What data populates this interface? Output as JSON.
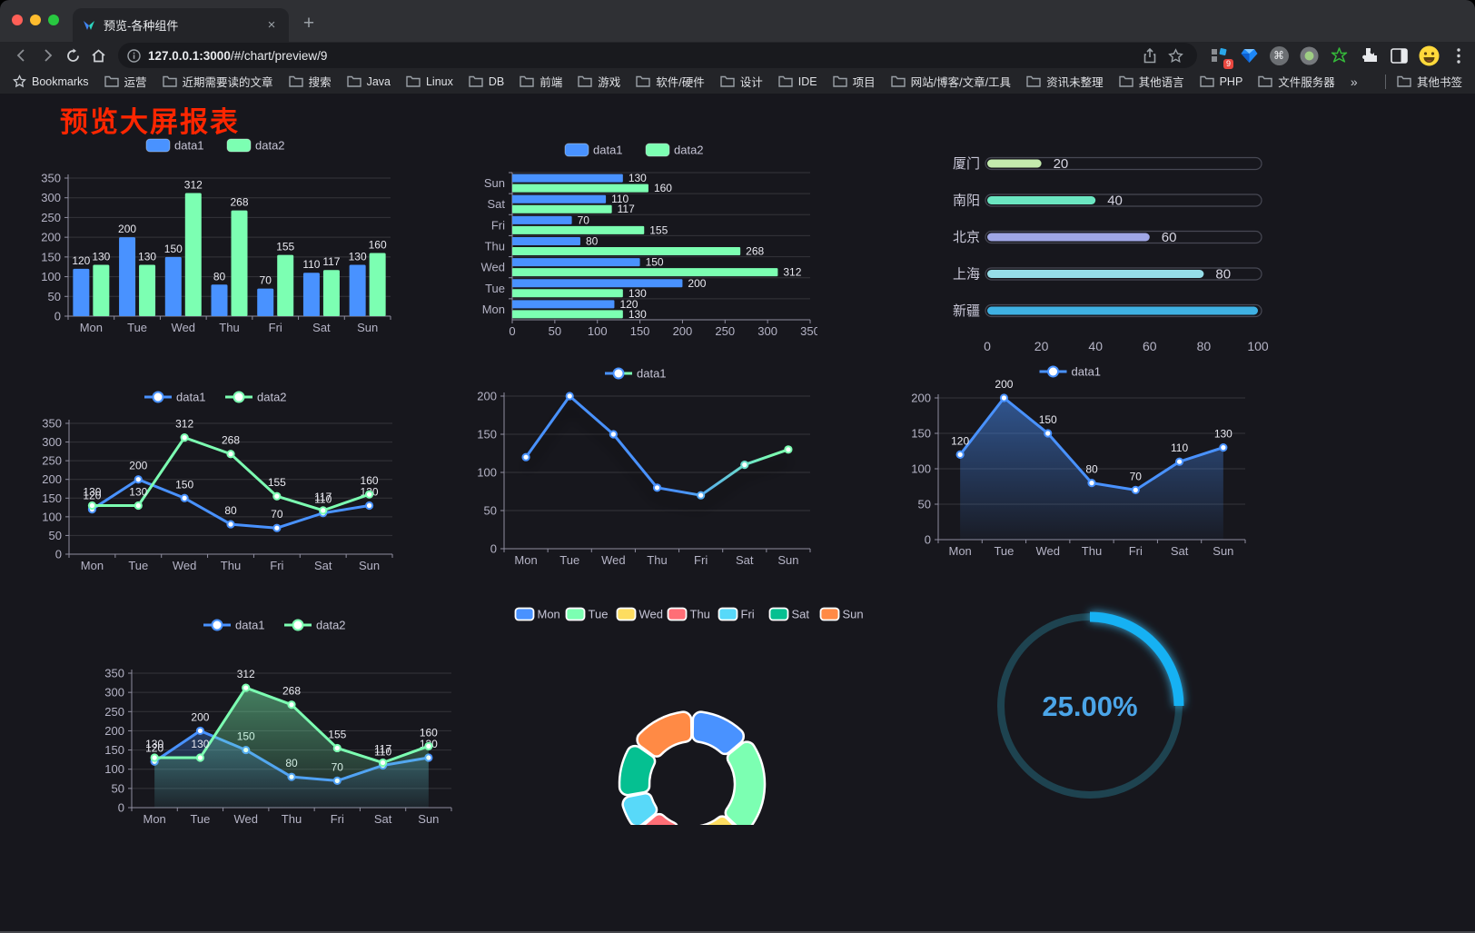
{
  "browser": {
    "traffic_lights": [
      "#ff5f57",
      "#febc2e",
      "#28c840"
    ],
    "tab": {
      "title": "预览-各种组件"
    },
    "close_icon": "×",
    "new_tab_icon": "+",
    "url": {
      "host": "127.0.0.1:3000",
      "path": "/#/chart/preview/9"
    },
    "extension_badge": "9",
    "bookmarks_bar": {
      "star_label": "Bookmarks",
      "folders": [
        "运营",
        "近期需要读的文章",
        "搜索",
        "Java",
        "Linux",
        "DB",
        "前端",
        "游戏",
        "软件/硬件",
        "设计",
        "IDE",
        "项目",
        "网站/博客/文章/工具",
        "资讯未整理",
        "其他语言",
        "PHP",
        "文件服务器"
      ],
      "overflow_icon": "»",
      "other_bookmarks": "其他书签"
    }
  },
  "page": {
    "title": "预览大屏报表"
  },
  "theme": {
    "background": "#17171d",
    "axis_line": "#8f8ea0",
    "tick_label": "#b5b4c6",
    "grid_line": "rgba(255,255,255,0.13)",
    "value_label": "#e9e9f0",
    "legend_text": "#c6c5d6",
    "data1_color": "#4992ff",
    "data2_color": "#7cffb2"
  },
  "chart_data": [
    {
      "type": "bar",
      "title": "",
      "categories": [
        "Mon",
        "Tue",
        "Wed",
        "Thu",
        "Fri",
        "Sat",
        "Sun"
      ],
      "series": [
        {
          "name": "data1",
          "color": "#4992ff",
          "values": [
            120,
            200,
            150,
            80,
            70,
            110,
            130
          ]
        },
        {
          "name": "data2",
          "color": "#7cffb2",
          "values": [
            130,
            130,
            312,
            268,
            155,
            117,
            160
          ]
        }
      ],
      "ylim": [
        0,
        350
      ],
      "yticks": [
        0,
        50,
        100,
        150,
        200,
        250,
        300,
        350
      ],
      "grid": true,
      "legend_position": "top",
      "value_labels": true
    },
    {
      "type": "bar",
      "orientation": "horizontal",
      "categories_top_to_bottom": [
        "Sun",
        "Sat",
        "Fri",
        "Thu",
        "Wed",
        "Tue",
        "Mon"
      ],
      "categories": [
        "Mon",
        "Tue",
        "Wed",
        "Thu",
        "Fri",
        "Sat",
        "Sun"
      ],
      "series": [
        {
          "name": "data1",
          "color": "#4992ff",
          "values": [
            120,
            200,
            150,
            80,
            70,
            110,
            130
          ]
        },
        {
          "name": "data2",
          "color": "#7cffb2",
          "values": [
            130,
            130,
            312,
            268,
            155,
            117,
            160
          ]
        }
      ],
      "xlim": [
        0,
        350
      ],
      "xticks": [
        0,
        50,
        100,
        150,
        200,
        250,
        300,
        350
      ],
      "grid": true,
      "legend_position": "top",
      "value_labels": true
    },
    {
      "type": "bar",
      "subtype": "progress-pills",
      "items": [
        {
          "label": "厦门",
          "value": 20,
          "color": "#c4ebad"
        },
        {
          "label": "南阳",
          "value": 40,
          "color": "#6be6c1"
        },
        {
          "label": "北京",
          "value": 60,
          "color": "#a0a7e6"
        },
        {
          "label": "上海",
          "value": 80,
          "color": "#96dee8"
        },
        {
          "label": "新疆",
          "value": 100,
          "color": "#3fb1e3"
        }
      ],
      "max": 100,
      "xticks": [
        0,
        20,
        40,
        60,
        80,
        100
      ],
      "value_labels": true
    },
    {
      "type": "line",
      "categories": [
        "Mon",
        "Tue",
        "Wed",
        "Thu",
        "Fri",
        "Sat",
        "Sun"
      ],
      "series": [
        {
          "name": "data1",
          "color": "#4992ff",
          "values": [
            120,
            200,
            150,
            80,
            70,
            110,
            130
          ]
        },
        {
          "name": "data2",
          "color": "#7cffb2",
          "values": [
            130,
            130,
            312,
            268,
            155,
            117,
            160
          ]
        }
      ],
      "ylim": [
        0,
        350
      ],
      "yticks": [
        0,
        50,
        100,
        150,
        200,
        250,
        300,
        350
      ],
      "grid": true,
      "legend_position": "top",
      "value_labels": true,
      "markers": true
    },
    {
      "type": "line",
      "categories": [
        "Mon",
        "Tue",
        "Wed",
        "Thu",
        "Fri",
        "Sat",
        "Sun"
      ],
      "series": [
        {
          "name": "data1",
          "colors": [
            "#4992ff",
            "#7cffb2"
          ],
          "values": [
            120,
            200,
            150,
            80,
            70,
            110,
            130
          ]
        }
      ],
      "ylim": [
        0,
        200
      ],
      "yticks": [
        0,
        50,
        100,
        150,
        200
      ],
      "grid": true,
      "legend_position": "top",
      "value_labels": false,
      "markers": true,
      "shadow": true
    },
    {
      "type": "area",
      "categories": [
        "Mon",
        "Tue",
        "Wed",
        "Thu",
        "Fri",
        "Sat",
        "Sun"
      ],
      "series": [
        {
          "name": "data1",
          "color": "#4992ff",
          "values": [
            120,
            200,
            150,
            80,
            70,
            110,
            130
          ]
        }
      ],
      "ylim": [
        0,
        200
      ],
      "yticks": [
        0,
        50,
        100,
        150,
        200
      ],
      "grid": true,
      "legend_position": "top",
      "value_labels": true,
      "markers": true
    },
    {
      "type": "area",
      "categories": [
        "Mon",
        "Tue",
        "Wed",
        "Thu",
        "Fri",
        "Sat",
        "Sun"
      ],
      "series": [
        {
          "name": "data1",
          "color": "#4992ff",
          "values": [
            120,
            200,
            150,
            80,
            70,
            110,
            130
          ]
        },
        {
          "name": "data2",
          "color": "#7cffb2",
          "values": [
            130,
            130,
            312,
            268,
            155,
            117,
            160
          ]
        }
      ],
      "ylim": [
        0,
        350
      ],
      "yticks": [
        0,
        50,
        100,
        150,
        200,
        250,
        300,
        350
      ],
      "grid": true,
      "legend_position": "top",
      "value_labels": true,
      "markers": true
    },
    {
      "type": "pie",
      "subtype": "donut",
      "legend_position": "top",
      "items": [
        {
          "name": "Mon",
          "value": 120,
          "color": "#4992ff"
        },
        {
          "name": "Tue",
          "value": 200,
          "color": "#7cffb2"
        },
        {
          "name": "Wed",
          "value": 150,
          "color": "#fddd60"
        },
        {
          "name": "Thu",
          "value": 80,
          "color": "#ff6e76"
        },
        {
          "name": "Fri",
          "value": 70,
          "color": "#58d9f9"
        },
        {
          "name": "Sat",
          "value": 110,
          "color": "#05c091"
        },
        {
          "name": "Sun",
          "value": 130,
          "color": "#ff8a45"
        }
      ]
    },
    {
      "type": "gauge",
      "value": 25,
      "max": 100,
      "label": "25.00%",
      "arc_color": "#16b1f3",
      "track_color": "#1e4350",
      "text_color": "#4ba5e8"
    }
  ]
}
